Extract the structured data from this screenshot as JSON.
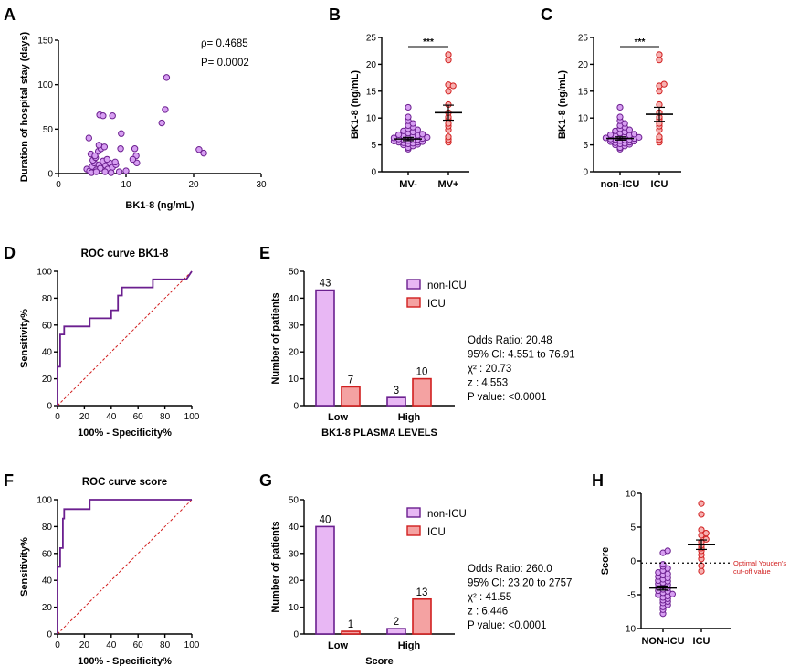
{
  "colors": {
    "purple": "#6b1f8f",
    "purple_fill": "#e8b7f4",
    "purple_point": "#d79ef2",
    "red": "#d11f1f",
    "red_fill": "#f4a2a2",
    "red_point": "#f7b0b0"
  },
  "panels": {
    "A": {
      "label": "A"
    },
    "B": {
      "label": "B"
    },
    "C": {
      "label": "C"
    },
    "D": {
      "label": "D"
    },
    "E": {
      "label": "E"
    },
    "F": {
      "label": "F"
    },
    "G": {
      "label": "G"
    },
    "H": {
      "label": "H"
    }
  },
  "chart_data": [
    {
      "id": "A",
      "type": "scatter",
      "xlabel": "BK1-8 (ng/mL)",
      "ylabel": "Duration of hospital stay (days)",
      "xlim": [
        0,
        30
      ],
      "ylim": [
        0,
        150
      ],
      "xticks": [
        "0",
        "10",
        "20",
        "30"
      ],
      "yticks": [
        "0",
        "50",
        "100",
        "150"
      ],
      "annotations": [
        "ρ= 0.4685",
        "P= 0.0002"
      ],
      "points": [
        [
          4.2,
          5
        ],
        [
          4.6,
          3
        ],
        [
          5.0,
          8
        ],
        [
          5.3,
          12
        ],
        [
          5.6,
          4
        ],
        [
          6.0,
          10
        ],
        [
          6.2,
          6
        ],
        [
          6.6,
          14
        ],
        [
          7.0,
          9
        ],
        [
          7.3,
          5
        ],
        [
          7.6,
          12
        ],
        [
          8.0,
          7
        ],
        [
          8.5,
          10
        ],
        [
          5.1,
          15
        ],
        [
          5.5,
          18
        ],
        [
          4.8,
          22
        ],
        [
          5.9,
          25
        ],
        [
          6.3,
          28
        ],
        [
          6.8,
          30
        ],
        [
          5.4,
          20
        ],
        [
          6.0,
          32
        ],
        [
          4.5,
          40
        ],
        [
          6.1,
          66
        ],
        [
          6.6,
          65
        ],
        [
          8.0,
          65
        ],
        [
          9.3,
          45
        ],
        [
          9.2,
          28
        ],
        [
          11.3,
          28
        ],
        [
          11.5,
          20
        ],
        [
          11.6,
          12
        ],
        [
          11.0,
          16
        ],
        [
          15.3,
          57
        ],
        [
          15.8,
          72
        ],
        [
          16.0,
          108
        ],
        [
          20.8,
          27
        ],
        [
          21.5,
          23
        ],
        [
          4.9,
          1
        ],
        [
          5.6,
          2
        ],
        [
          6.9,
          2
        ],
        [
          7.8,
          1
        ],
        [
          9.0,
          2
        ],
        [
          10.0,
          3
        ],
        [
          8.4,
          13
        ],
        [
          7.2,
          16
        ]
      ]
    },
    {
      "id": "B",
      "type": "scatter",
      "categories": [
        "MV-",
        "MV+"
      ],
      "ylabel": "BK1-8 (ng/mL)",
      "ylim": [
        0,
        25
      ],
      "yticks": [
        "0",
        "5",
        "10",
        "15",
        "20",
        "25"
      ],
      "significance": "***",
      "groups": [
        {
          "name": "MV-",
          "color": "purple",
          "mean": 6.1,
          "sem": 0.3,
          "values": [
            4.2,
            4.5,
            4.8,
            5.0,
            5.1,
            5.2,
            5.3,
            5.4,
            5.5,
            5.5,
            5.6,
            5.7,
            5.8,
            5.9,
            6.0,
            6.0,
            6.1,
            6.2,
            6.3,
            6.4,
            6.5,
            6.6,
            6.7,
            6.8,
            6.9,
            7.0,
            7.2,
            7.4,
            7.6,
            7.8,
            8.0,
            8.3,
            8.6,
            9.0,
            9.5,
            10.2,
            12.0
          ]
        },
        {
          "name": "MV+",
          "color": "red",
          "mean": 11.0,
          "sem": 1.4,
          "values": [
            5.5,
            6.0,
            6.5,
            7.8,
            8.5,
            9.0,
            9.8,
            10.2,
            11.0,
            12.5,
            15.0,
            16.2,
            16.0,
            20.8,
            21.8
          ]
        }
      ]
    },
    {
      "id": "C",
      "type": "scatter",
      "categories": [
        "non-ICU",
        "ICU"
      ],
      "ylabel": "BK1-8 (ng/mL)",
      "ylim": [
        0,
        25
      ],
      "yticks": [
        "0",
        "5",
        "10",
        "15",
        "20",
        "25"
      ],
      "significance": "***",
      "groups": [
        {
          "name": "non-ICU",
          "color": "purple",
          "mean": 6.2,
          "sem": 0.3,
          "values": [
            4.2,
            4.5,
            4.8,
            5.0,
            5.1,
            5.2,
            5.3,
            5.4,
            5.5,
            5.6,
            5.7,
            5.8,
            5.9,
            6.0,
            6.0,
            6.1,
            6.2,
            6.3,
            6.4,
            6.5,
            6.6,
            6.7,
            6.8,
            6.9,
            7.0,
            7.2,
            7.4,
            7.6,
            7.8,
            8.0,
            8.3,
            8.6,
            9.0,
            9.5,
            10.2,
            12.0
          ]
        },
        {
          "name": "ICU",
          "color": "red",
          "mean": 10.7,
          "sem": 1.3,
          "values": [
            5.5,
            6.0,
            6.5,
            7.8,
            8.5,
            9.0,
            9.8,
            10.2,
            11.0,
            12.5,
            15.0,
            16.0,
            16.3,
            20.8,
            21.8
          ]
        }
      ]
    },
    {
      "id": "D",
      "type": "line",
      "title": "ROC curve BK1-8",
      "xlabel": "100% - Specificity%",
      "ylabel": "Sensitivity%",
      "xlim": [
        0,
        100
      ],
      "ylim": [
        0,
        100
      ],
      "xticks": [
        "0",
        "20",
        "40",
        "60",
        "80",
        "100"
      ],
      "yticks": [
        "0",
        "20",
        "40",
        "60",
        "80",
        "100"
      ],
      "roc": [
        [
          0,
          0
        ],
        [
          0,
          29
        ],
        [
          2,
          29
        ],
        [
          2,
          53
        ],
        [
          5,
          53
        ],
        [
          5,
          59
        ],
        [
          24,
          59
        ],
        [
          24,
          65
        ],
        [
          40,
          65
        ],
        [
          40,
          71
        ],
        [
          45,
          71
        ],
        [
          45,
          82
        ],
        [
          48,
          82
        ],
        [
          48,
          88
        ],
        [
          71,
          88
        ],
        [
          71,
          94
        ],
        [
          96,
          94
        ],
        [
          100,
          100
        ]
      ],
      "reference": [
        [
          0,
          0
        ],
        [
          100,
          100
        ]
      ]
    },
    {
      "id": "E",
      "type": "bar",
      "categories": [
        "Low",
        "High"
      ],
      "xlabel": "BK1-8 PLASMA LEVELS",
      "ylabel": "Number of patients",
      "ylim": [
        0,
        50
      ],
      "yticks": [
        "0",
        "10",
        "20",
        "30",
        "40",
        "50"
      ],
      "series": [
        {
          "name": "non-ICU",
          "color": "purple",
          "values": [
            43,
            3
          ],
          "labels": [
            "43",
            "3"
          ]
        },
        {
          "name": "ICU",
          "color": "red",
          "values": [
            7,
            10
          ],
          "labels": [
            "7",
            "10"
          ]
        }
      ],
      "stats": [
        "Odds Ratio: 20.48",
        "95% CI: 4.551 to 76.91",
        "χ² : 20.73",
        "z : 4.553",
        "P value: <0.0001"
      ]
    },
    {
      "id": "F",
      "type": "line",
      "title": "ROC curve score",
      "xlabel": "100% - Specificity%",
      "ylabel": "Sensitivity%",
      "xlim": [
        0,
        100
      ],
      "ylim": [
        0,
        100
      ],
      "xticks": [
        "0",
        "20",
        "40",
        "60",
        "80",
        "100"
      ],
      "yticks": [
        "0",
        "20",
        "40",
        "60",
        "80",
        "100"
      ],
      "roc": [
        [
          0,
          0
        ],
        [
          0,
          50
        ],
        [
          2,
          50
        ],
        [
          2,
          64
        ],
        [
          4,
          64
        ],
        [
          4,
          86
        ],
        [
          5,
          86
        ],
        [
          5,
          93
        ],
        [
          24,
          93
        ],
        [
          24,
          100
        ],
        [
          100,
          100
        ]
      ],
      "reference": [
        [
          0,
          0
        ],
        [
          100,
          100
        ]
      ]
    },
    {
      "id": "G",
      "type": "bar",
      "categories": [
        "Low",
        "High"
      ],
      "xlabel": "Score",
      "ylabel": "Number of patients",
      "ylim": [
        0,
        50
      ],
      "yticks": [
        "0",
        "10",
        "20",
        "30",
        "40",
        "50"
      ],
      "series": [
        {
          "name": "non-ICU",
          "color": "purple",
          "values": [
            40,
            2
          ],
          "labels": [
            "40",
            "2"
          ]
        },
        {
          "name": "ICU",
          "color": "red",
          "values": [
            1,
            13
          ],
          "labels": [
            "1",
            "13"
          ]
        }
      ],
      "stats": [
        "Odds Ratio: 260.0",
        "95% CI: 23.20 to 2757",
        "χ² : 41.55",
        "z : 6.446",
        "P value: <0.0001"
      ]
    },
    {
      "id": "H",
      "type": "scatter",
      "categories": [
        "NON-ICU",
        "ICU"
      ],
      "ylabel": "Score",
      "ylim": [
        -10,
        10
      ],
      "yticks": [
        "-10",
        "-5",
        "0",
        "5",
        "10"
      ],
      "cutoff": -0.3,
      "cutoff_label": [
        "Optimal Youden's",
        "cut-off value"
      ],
      "groups": [
        {
          "name": "NON-ICU",
          "color": "purple",
          "mean": -4.0,
          "sem": 0.3,
          "values": [
            -7.8,
            -7.2,
            -6.8,
            -6.5,
            -6.2,
            -6.0,
            -5.8,
            -5.6,
            -5.4,
            -5.2,
            -5.0,
            -4.9,
            -4.7,
            -4.5,
            -4.4,
            -4.2,
            -4.0,
            -3.9,
            -3.7,
            -3.5,
            -3.4,
            -3.2,
            -3.0,
            -2.9,
            -2.7,
            -2.5,
            -2.3,
            -2.1,
            -1.9,
            -1.7,
            -1.4,
            -1.1,
            -0.8,
            -0.5,
            1.2,
            1.5
          ]
        },
        {
          "name": "ICU",
          "color": "red",
          "mean": 2.4,
          "sem": 0.7,
          "values": [
            -1.5,
            -0.7,
            0.3,
            0.9,
            1.5,
            1.9,
            2.3,
            2.8,
            3.2,
            3.8,
            4.1,
            4.6,
            6.9,
            8.5
          ]
        }
      ]
    }
  ]
}
